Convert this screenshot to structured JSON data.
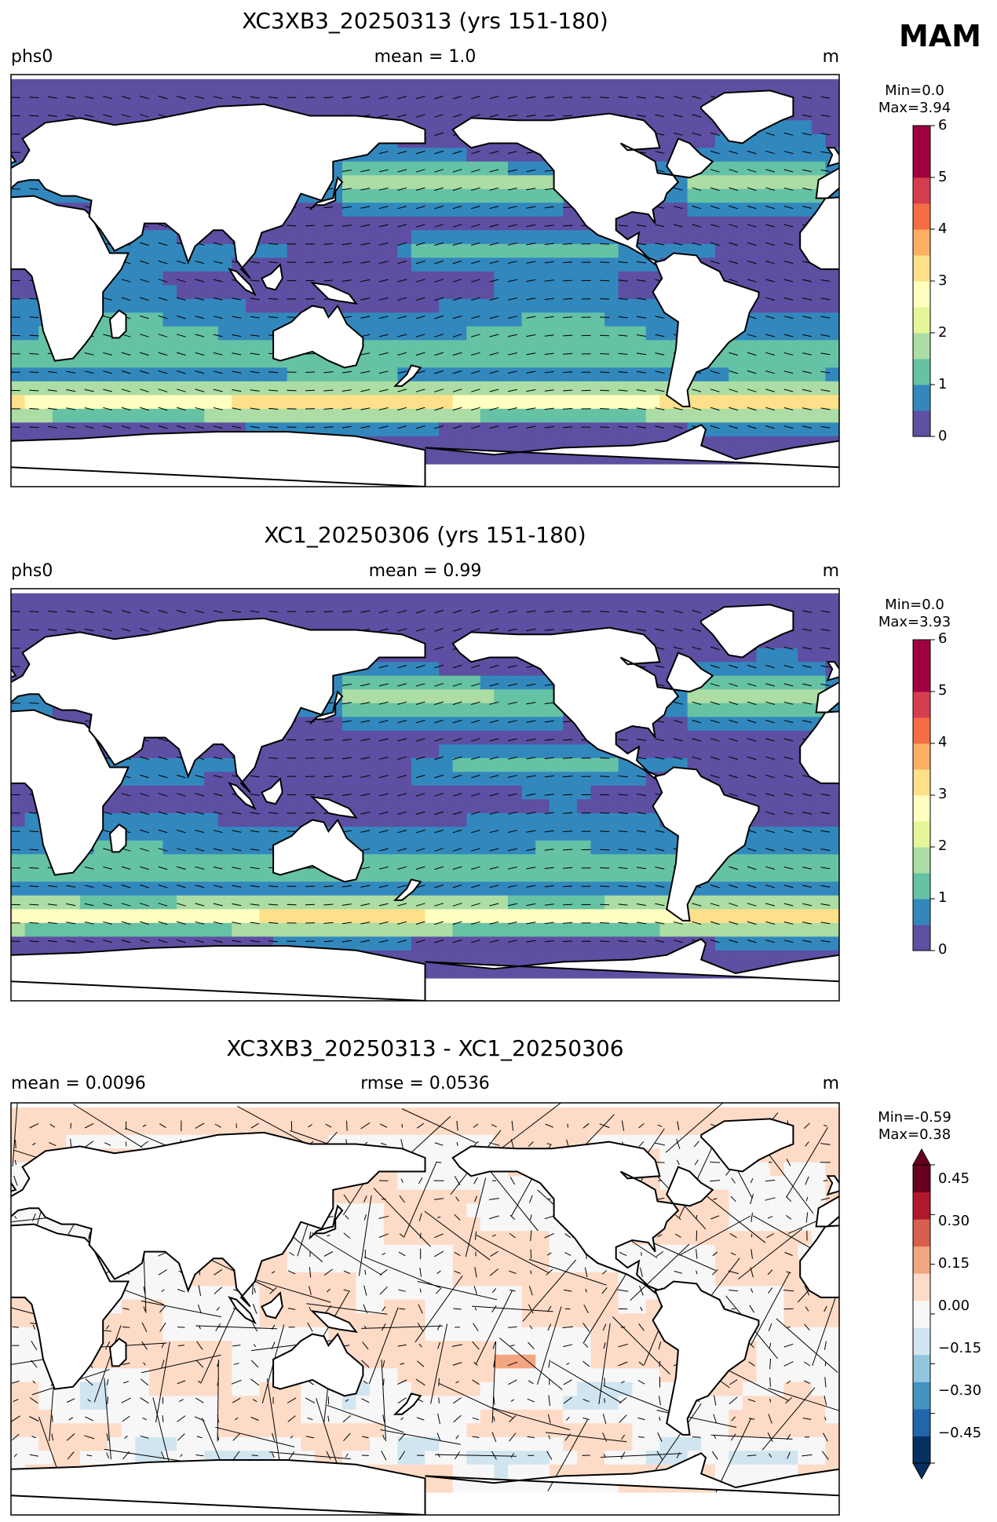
{
  "season": "MAM",
  "panels": [
    {
      "title": "XC3XB3_20250313 (yrs 151-180)",
      "left_label": "phs0",
      "center_label": "mean = 1.0",
      "units": "m",
      "min_label": "Min=0.0",
      "max_label": "Max=3.94",
      "colorbar_ticks": [
        "0",
        "1",
        "2",
        "3",
        "4",
        "5",
        "6"
      ]
    },
    {
      "title": "XC1_20250306 (yrs 151-180)",
      "left_label": "phs0",
      "center_label": "mean = 0.99",
      "units": "m",
      "min_label": "Min=0.0",
      "max_label": "Max=3.93",
      "colorbar_ticks": [
        "0",
        "1",
        "2",
        "3",
        "4",
        "5",
        "6"
      ]
    },
    {
      "title": "XC3XB3_20250313 - XC1_20250306",
      "left_label": "mean = 0.0096",
      "center_label": "rmse = 0.0536",
      "units": "m",
      "min_label": "Min=-0.59",
      "max_label": "Max=0.38",
      "colorbar_ticks": [
        "−0.45",
        "−0.30",
        "−0.15",
        "0.00",
        "0.15",
        "0.30",
        "0.45"
      ]
    }
  ],
  "colors": {
    "seq": [
      "#5e4fa2",
      "#3288bd",
      "#66c2a5",
      "#abdda4",
      "#e6f598",
      "#ffffbf",
      "#fee08b",
      "#fdae61",
      "#f46d43",
      "#d53e4f",
      "#9e0142"
    ],
    "div": [
      "#053061",
      "#2166ac",
      "#4393c3",
      "#92c5de",
      "#d1e5f0",
      "#f7f7f7",
      "#fddbc7",
      "#f4a582",
      "#d6604d",
      "#b2182b",
      "#67001f"
    ],
    "land": "#ffffff"
  }
}
